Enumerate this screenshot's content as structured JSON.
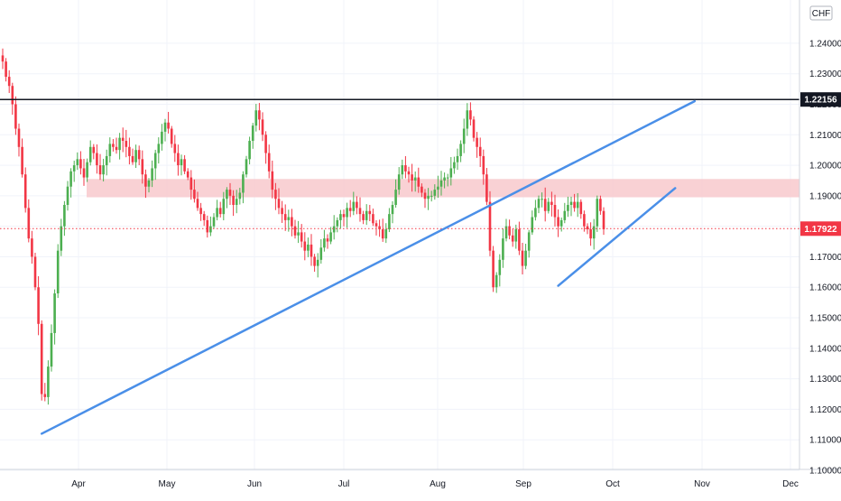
{
  "chart_data": {
    "type": "candlestick",
    "currency_label": "CHF",
    "ylim": [
      1.1,
      1.245
    ],
    "y_ticks": [
      "1.24000",
      "1.23000",
      "1.22000",
      "1.21000",
      "1.20000",
      "1.19000",
      "1.18000",
      "1.17000",
      "1.16000",
      "1.15000",
      "1.14000",
      "1.13000",
      "1.12000",
      "1.11000",
      "1.10000"
    ],
    "x_tick_labels": [
      "Apr",
      "May",
      "Jun",
      "Jul",
      "Aug",
      "Sep",
      "Oct",
      "Nov",
      "Dec"
    ],
    "price_badges": [
      {
        "label": "1.22156",
        "value": 1.22156,
        "color": "#131722"
      },
      {
        "label": "1.17922",
        "value": 1.17922,
        "color": "#f23645"
      }
    ],
    "colors": {
      "up": "#26a69a",
      "up_body": "#4caf50",
      "down": "#f23645",
      "trendline": "#4a8fe8",
      "resistance": "#131722",
      "zone": "#f8c9cc",
      "grid": "#f0f3fa"
    },
    "resistance_level": 1.22156,
    "support_zone": [
      1.1895,
      1.1955
    ],
    "trendlines": [
      {
        "from": {
          "bar": 12,
          "price": 1.112
        },
        "to": {
          "bar": 213,
          "price": 1.221
        }
      },
      {
        "from": {
          "bar": 171,
          "price": 1.1605
        },
        "to": {
          "bar": 207,
          "price": 1.1925
        }
      }
    ],
    "closes": [
      1.234,
      1.229,
      1.226,
      1.22,
      1.212,
      1.206,
      1.197,
      1.186,
      1.176,
      1.17,
      1.16,
      1.148,
      1.125,
      1.124,
      1.134,
      1.145,
      1.158,
      1.172,
      1.18,
      1.187,
      1.193,
      1.198,
      1.2,
      1.202,
      1.199,
      1.196,
      1.201,
      1.206,
      1.204,
      1.2,
      1.197,
      1.2,
      1.203,
      1.207,
      1.206,
      1.205,
      1.209,
      1.208,
      1.206,
      1.203,
      1.201,
      1.205,
      1.202,
      1.197,
      1.193,
      1.195,
      1.199,
      1.204,
      1.207,
      1.211,
      1.214,
      1.212,
      1.207,
      1.204,
      1.2,
      1.202,
      1.198,
      1.196,
      1.192,
      1.189,
      1.186,
      1.184,
      1.182,
      1.178,
      1.18,
      1.183,
      1.186,
      1.184,
      1.189,
      1.192,
      1.19,
      1.187,
      1.189,
      1.191,
      1.197,
      1.202,
      1.208,
      1.213,
      1.218,
      1.215,
      1.21,
      1.204,
      1.198,
      1.192,
      1.189,
      1.186,
      1.184,
      1.182,
      1.183,
      1.18,
      1.177,
      1.178,
      1.175,
      1.172,
      1.174,
      1.17,
      1.167,
      1.169,
      1.173,
      1.176,
      1.175,
      1.178,
      1.18,
      1.182,
      1.184,
      1.183,
      1.186,
      1.185,
      1.188,
      1.186,
      1.184,
      1.182,
      1.185,
      1.184,
      1.181,
      1.18,
      1.179,
      1.176,
      1.179,
      1.184,
      1.187,
      1.192,
      1.197,
      1.2,
      1.198,
      1.197,
      1.195,
      1.196,
      1.193,
      1.191,
      1.189,
      1.19,
      1.19,
      1.192,
      1.193,
      1.195,
      1.196,
      1.196,
      1.199,
      1.201,
      1.203,
      1.207,
      1.212,
      1.218,
      1.215,
      1.209,
      1.206,
      1.203,
      1.197,
      1.188,
      1.172,
      1.16,
      1.164,
      1.169,
      1.176,
      1.18,
      1.177,
      1.175,
      1.179,
      1.172,
      1.167,
      1.172,
      1.178,
      1.183,
      1.186,
      1.189,
      1.189,
      1.185,
      1.188,
      1.187,
      1.183,
      1.18,
      1.182,
      1.185,
      1.187,
      1.188,
      1.186,
      1.188,
      1.184,
      1.18,
      1.179,
      1.176,
      1.18,
      1.189,
      1.185,
      1.179
    ],
    "last_close": 1.17922
  }
}
